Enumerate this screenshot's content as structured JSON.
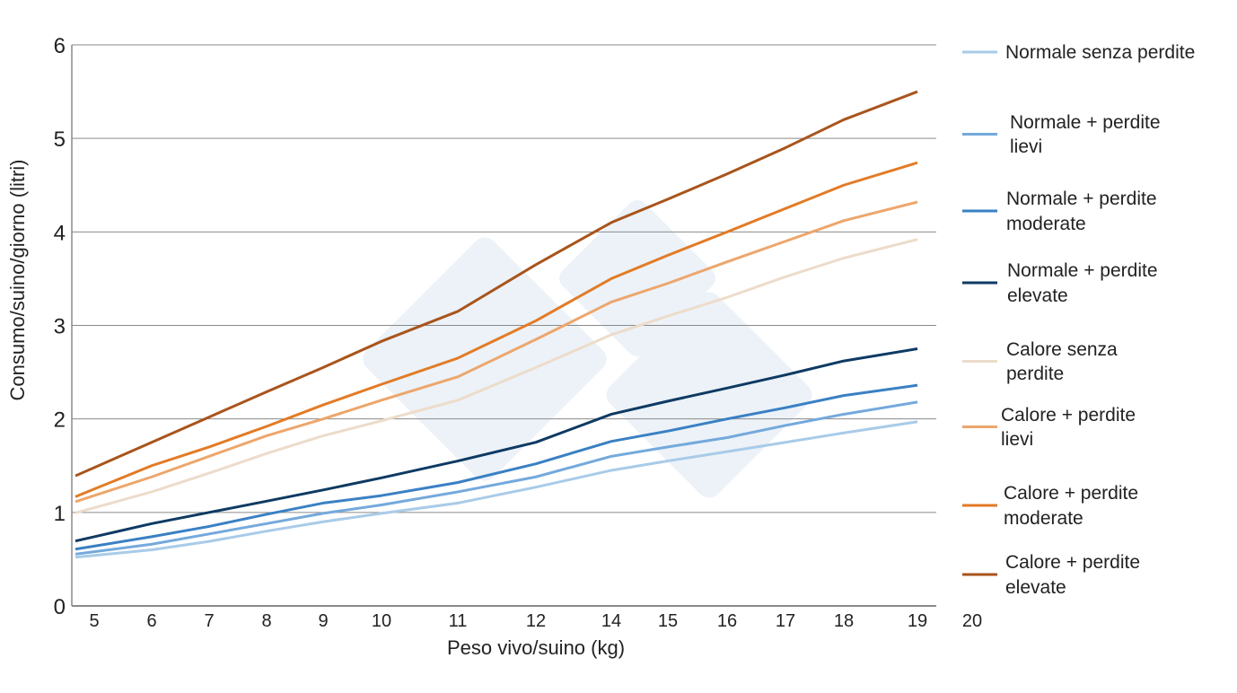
{
  "chart_data": {
    "type": "line",
    "title": "",
    "xlabel": "Peso vivo/suino (kg)",
    "ylabel": "Consumo/suino/giorno (litri)",
    "ylim": [
      0,
      6
    ],
    "yticks": [
      "0",
      "1",
      "2",
      "3",
      "4",
      "5",
      "6"
    ],
    "x": [
      "5",
      "6",
      "7",
      "8",
      "9",
      "10",
      "11",
      "12",
      "14",
      "15",
      "16",
      "17",
      "18",
      "19"
    ],
    "xticks": [
      "5",
      "6",
      "7",
      "8",
      "9",
      "10",
      "11",
      "12",
      "14",
      "15",
      "16",
      "17",
      "18",
      "19",
      "20"
    ],
    "grid": true,
    "legend_position": "right",
    "series": [
      {
        "name": "Normale senza perdite",
        "color": "#a9cbe8",
        "values": [
          0.54,
          0.6,
          0.69,
          0.8,
          0.9,
          0.99,
          1.1,
          1.27,
          1.45,
          1.55,
          1.65,
          1.75,
          1.85,
          1.97
        ]
      },
      {
        "name": "Normale + perdite lievi",
        "color": "#74a9dc",
        "values": [
          0.58,
          0.66,
          0.77,
          0.88,
          0.99,
          1.08,
          1.22,
          1.38,
          1.6,
          1.7,
          1.8,
          1.93,
          2.05,
          2.18
        ]
      },
      {
        "name": "Normale + perdite moderate",
        "color": "#3a80c3",
        "values": [
          0.64,
          0.74,
          0.85,
          0.98,
          1.1,
          1.18,
          1.32,
          1.52,
          1.76,
          1.87,
          2.0,
          2.12,
          2.25,
          2.36
        ]
      },
      {
        "name": "Normale + perdite elevate",
        "color": "#0e3a63",
        "values": [
          0.74,
          0.88,
          1.0,
          1.12,
          1.24,
          1.37,
          1.55,
          1.75,
          2.05,
          2.19,
          2.33,
          2.47,
          2.62,
          2.75
        ]
      },
      {
        "name": "Calore senza perdite",
        "color": "#eddcca",
        "values": [
          1.05,
          1.22,
          1.42,
          1.63,
          1.82,
          1.98,
          2.2,
          2.55,
          2.9,
          3.1,
          3.3,
          3.52,
          3.72,
          3.92
        ]
      },
      {
        "name": "Calore + perdite lievi",
        "color": "#eda66c",
        "values": [
          1.18,
          1.38,
          1.6,
          1.82,
          2.0,
          2.2,
          2.45,
          2.85,
          3.25,
          3.45,
          3.68,
          3.9,
          4.12,
          4.32
        ]
      },
      {
        "name": "Calore + perdite moderate",
        "color": "#e27b26",
        "values": [
          1.25,
          1.5,
          1.7,
          1.92,
          2.15,
          2.37,
          2.65,
          3.05,
          3.5,
          3.75,
          4.0,
          4.25,
          4.5,
          4.74
        ]
      },
      {
        "name": "Calore + perdite elevate",
        "color": "#a9541c",
        "values": [
          1.48,
          1.75,
          2.02,
          2.29,
          2.55,
          2.83,
          3.15,
          3.65,
          4.1,
          4.35,
          4.62,
          4.9,
          5.2,
          5.5
        ]
      }
    ]
  }
}
